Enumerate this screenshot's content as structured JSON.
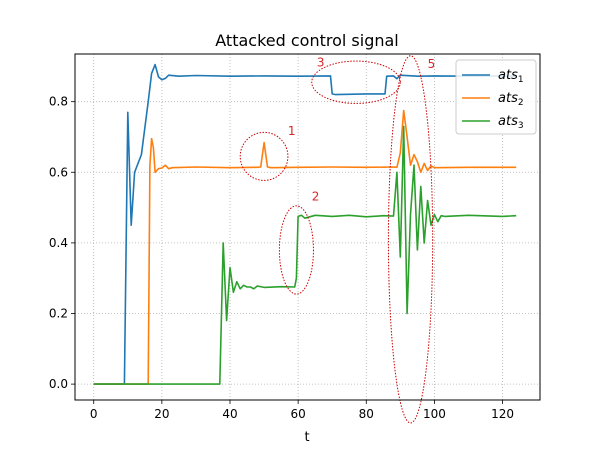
{
  "chart_data": {
    "type": "line",
    "title": "Attacked control signal",
    "xlabel": "t",
    "ylabel": "",
    "xlim": [
      -5.5,
      131
    ],
    "ylim": [
      -0.045,
      0.935
    ],
    "xticks": [
      0,
      20,
      40,
      60,
      80,
      100,
      120
    ],
    "yticks": [
      0.0,
      0.2,
      0.4,
      0.6,
      0.8
    ],
    "grid": true,
    "legend_position": "top-right",
    "series": [
      {
        "name": "ats",
        "subscript": "1",
        "color": "#1f77b4",
        "x": [
          0,
          9,
          10,
          11,
          12,
          14,
          16,
          17,
          18,
          19,
          20,
          21,
          22,
          25,
          30,
          40,
          50,
          60,
          69.5,
          70,
          71,
          80,
          85.5,
          86,
          88,
          89,
          90,
          95,
          100,
          110,
          120,
          124
        ],
        "y": [
          0,
          0,
          0.77,
          0.45,
          0.6,
          0.65,
          0.8,
          0.88,
          0.905,
          0.87,
          0.862,
          0.866,
          0.875,
          0.872,
          0.874,
          0.872,
          0.873,
          0.872,
          0.873,
          0.822,
          0.82,
          0.822,
          0.822,
          0.872,
          0.873,
          0.865,
          0.875,
          0.872,
          0.873,
          0.872,
          0.873,
          0.872
        ]
      },
      {
        "name": "ats",
        "subscript": "2",
        "color": "#ff7f0e",
        "x": [
          0,
          16,
          16.5,
          17,
          17.5,
          18,
          19,
          20,
          21,
          22,
          23,
          30,
          40,
          48,
          49,
          50,
          51,
          52,
          60,
          70,
          80,
          88,
          89,
          90,
          91,
          92,
          93,
          94,
          95,
          96,
          97,
          98,
          99,
          100,
          110,
          124
        ],
        "y": [
          0,
          0,
          0.62,
          0.695,
          0.67,
          0.6,
          0.61,
          0.612,
          0.62,
          0.61,
          0.613,
          0.615,
          0.613,
          0.614,
          0.615,
          0.684,
          0.615,
          0.613,
          0.614,
          0.615,
          0.614,
          0.615,
          0.614,
          0.655,
          0.775,
          0.7,
          0.62,
          0.65,
          0.63,
          0.6,
          0.625,
          0.605,
          0.618,
          0.613,
          0.614,
          0.614
        ]
      },
      {
        "name": "ats",
        "subscript": "3",
        "color": "#2ca02c",
        "x": [
          0,
          37,
          38,
          39,
          40,
          41,
          42,
          43,
          44,
          45,
          46,
          47,
          48,
          50,
          55,
          59,
          59.5,
          60,
          61,
          62,
          65,
          70,
          75,
          80,
          85,
          88,
          89,
          90,
          91,
          92,
          93,
          94,
          95,
          96,
          97,
          98,
          99,
          100,
          101,
          102,
          103,
          110,
          120,
          124
        ],
        "y": [
          0,
          0,
          0.4,
          0.18,
          0.33,
          0.26,
          0.29,
          0.27,
          0.28,
          0.275,
          0.275,
          0.27,
          0.278,
          0.274,
          0.276,
          0.275,
          0.3,
          0.475,
          0.478,
          0.47,
          0.478,
          0.475,
          0.478,
          0.474,
          0.477,
          0.476,
          0.6,
          0.36,
          0.73,
          0.2,
          0.48,
          0.62,
          0.38,
          0.56,
          0.4,
          0.52,
          0.45,
          0.48,
          0.46,
          0.477,
          0.475,
          0.478,
          0.475,
          0.477
        ]
      }
    ],
    "annotations": [
      {
        "label": "1",
        "label_at": [
          57,
          0.705
        ],
        "ellipse_center": [
          50,
          0.645
        ],
        "ellipse_radii": [
          7,
          0.068
        ]
      },
      {
        "label": "2",
        "label_at": [
          64,
          0.52
        ],
        "ellipse_center": [
          59.5,
          0.38
        ],
        "ellipse_radii": [
          5,
          0.125
        ]
      },
      {
        "label": "3",
        "label_at": [
          65.5,
          0.9
        ],
        "ellipse_center": [
          77,
          0.855
        ],
        "ellipse_radii": [
          13,
          0.06
        ]
      },
      {
        "label": "5",
        "label_at": [
          98,
          0.895
        ],
        "ellipse_center": [
          93,
          0.41
        ],
        "ellipse_radii": [
          6.5,
          0.52
        ]
      }
    ]
  }
}
